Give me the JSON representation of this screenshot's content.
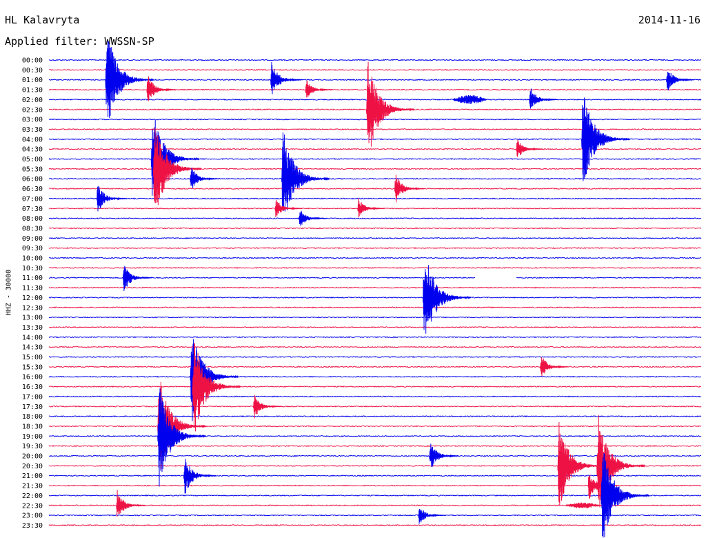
{
  "header": {
    "station": "HL Kalavryta",
    "date": "2014-11-16",
    "filter": "Applied filter: WWSSN-SP"
  },
  "chart_data": {
    "type": "line",
    "title": "HL Kalavryta",
    "date": "2014-11-16",
    "filter": "WWSSN-SP",
    "ylabel": "HHZ - 30000",
    "row_labels": [
      "00:00",
      "00:30",
      "01:00",
      "01:30",
      "02:00",
      "02:30",
      "03:00",
      "03:30",
      "04:00",
      "04:30",
      "05:00",
      "05:30",
      "06:00",
      "06:30",
      "07:00",
      "07:30",
      "08:00",
      "08:30",
      "09:00",
      "09:30",
      "10:00",
      "10:30",
      "11:00",
      "11:30",
      "12:00",
      "12:30",
      "13:00",
      "13:30",
      "14:00",
      "14:30",
      "15:00",
      "15:30",
      "16:00",
      "16:30",
      "17:00",
      "17:30",
      "18:00",
      "18:30",
      "19:00",
      "19:30",
      "20:00",
      "20:30",
      "21:00",
      "21:30",
      "22:00",
      "22:30",
      "23:00",
      "23:30"
    ],
    "colors": [
      "#0000ee",
      "#ee1144"
    ],
    "x_range_minutes": [
      0,
      30
    ],
    "events": [
      {
        "row": "01:00",
        "minute": 2.6,
        "amplitude": 1.0
      },
      {
        "row": "01:00",
        "minute": 10.2,
        "amplitude": 0.35
      },
      {
        "row": "01:00",
        "minute": 28.4,
        "amplitude": 0.25
      },
      {
        "row": "01:30",
        "minute": 4.5,
        "amplitude": 0.3
      },
      {
        "row": "01:30",
        "minute": 11.8,
        "amplitude": 0.2
      },
      {
        "row": "02:00",
        "minute": 18.6,
        "amplitude": 0.3,
        "duration": 1.5
      },
      {
        "row": "02:00",
        "minute": 22.1,
        "amplitude": 0.25
      },
      {
        "row": "02:30",
        "minute": 14.6,
        "amplitude": 1.0
      },
      {
        "row": "04:00",
        "minute": 24.5,
        "amplitude": 1.0
      },
      {
        "row": "04:30",
        "minute": 21.5,
        "amplitude": 0.2
      },
      {
        "row": "05:00",
        "minute": 4.7,
        "amplitude": 1.0
      },
      {
        "row": "05:30",
        "minute": 4.8,
        "amplitude": 1.0
      },
      {
        "row": "06:00",
        "minute": 10.7,
        "amplitude": 1.0
      },
      {
        "row": "06:00",
        "minute": 6.5,
        "amplitude": 0.25
      },
      {
        "row": "06:30",
        "minute": 15.9,
        "amplitude": 0.3
      },
      {
        "row": "07:00",
        "minute": 2.2,
        "amplitude": 0.3
      },
      {
        "row": "07:30",
        "minute": 10.4,
        "amplitude": 0.2
      },
      {
        "row": "07:30",
        "minute": 14.2,
        "amplitude": 0.2
      },
      {
        "row": "08:00",
        "minute": 11.5,
        "amplitude": 0.2
      },
      {
        "row": "11:00",
        "minute": 3.4,
        "amplitude": 0.3
      },
      {
        "row": "12:00",
        "minute": 17.2,
        "amplitude": 1.0
      },
      {
        "row": "15:30",
        "minute": 22.6,
        "amplitude": 0.25
      },
      {
        "row": "16:00",
        "minute": 6.5,
        "amplitude": 1.0
      },
      {
        "row": "16:30",
        "minute": 6.6,
        "amplitude": 1.0
      },
      {
        "row": "17:30",
        "minute": 9.4,
        "amplitude": 0.25
      },
      {
        "row": "18:30",
        "minute": 5.0,
        "amplitude": 1.0
      },
      {
        "row": "19:00",
        "minute": 5.0,
        "amplitude": 1.0
      },
      {
        "row": "20:00",
        "minute": 17.5,
        "amplitude": 0.3
      },
      {
        "row": "20:30",
        "minute": 23.4,
        "amplitude": 0.9
      },
      {
        "row": "20:30",
        "minute": 25.2,
        "amplitude": 1.0
      },
      {
        "row": "21:00",
        "minute": 6.2,
        "amplitude": 0.4
      },
      {
        "row": "21:30",
        "minute": 24.8,
        "amplitude": 0.3
      },
      {
        "row": "22:00",
        "minute": 25.4,
        "amplitude": 1.0
      },
      {
        "row": "22:30",
        "minute": 3.1,
        "amplitude": 0.3
      },
      {
        "row": "22:30",
        "minute": 23.8,
        "amplitude": 0.2,
        "duration": 1.5
      },
      {
        "row": "23:00",
        "minute": 17.0,
        "amplitude": 0.2
      }
    ],
    "gaps": [
      {
        "row": "11:00",
        "start_minute": 19.6,
        "end_minute": 21.5
      }
    ]
  }
}
